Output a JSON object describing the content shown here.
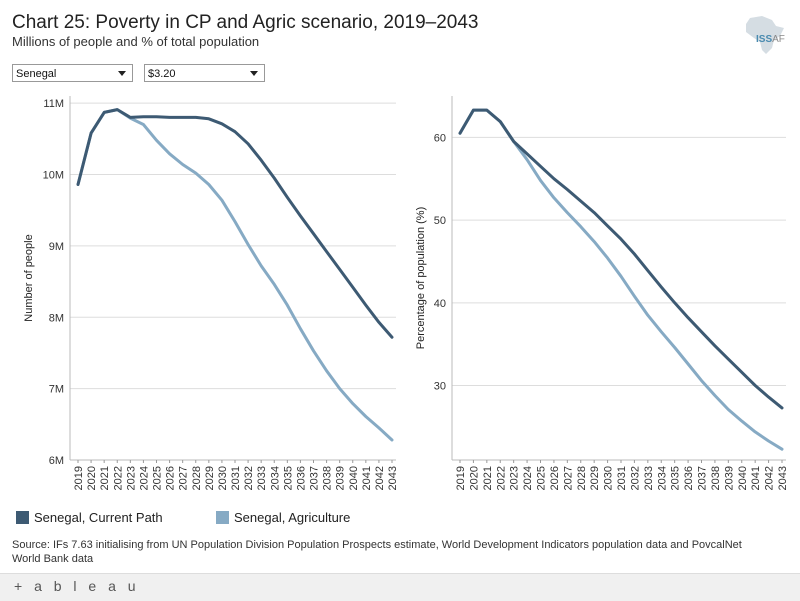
{
  "header": {
    "title": "Chart 25: Poverty in CP and Agric scenario, 2019–2043",
    "subtitle": "Millions of people and % of total population"
  },
  "logo": {
    "text_main": "ISS",
    "text_sub": "AF"
  },
  "filters": {
    "country": "Senegal",
    "threshold": "$3.20"
  },
  "colors": {
    "current_path": "#3d5a73",
    "agriculture": "#86aac4",
    "grid": "#dddddd",
    "axis": "#555555"
  },
  "chart_data": [
    {
      "type": "line",
      "title": "",
      "xlabel": "",
      "ylabel": "Number of people",
      "ylim": [
        6,
        11.1
      ],
      "yticks": [
        6,
        7,
        8,
        9,
        10,
        11
      ],
      "ytick_labels": [
        "6M",
        "7M",
        "8M",
        "9M",
        "10M",
        "11M"
      ],
      "x": [
        "2019",
        "2020",
        "2021",
        "2022",
        "2023",
        "2024",
        "2025",
        "2026",
        "2027",
        "2028",
        "2029",
        "2030",
        "2031",
        "2032",
        "2033",
        "2034",
        "2035",
        "2036",
        "2037",
        "2038",
        "2039",
        "2040",
        "2041",
        "2042",
        "2043"
      ],
      "series": [
        {
          "name": "Senegal, Current Path",
          "values": [
            9.86,
            10.58,
            10.87,
            10.91,
            10.8,
            10.81,
            10.81,
            10.8,
            10.8,
            10.8,
            10.78,
            10.71,
            10.6,
            10.43,
            10.2,
            9.95,
            9.68,
            9.42,
            9.17,
            8.92,
            8.67,
            8.42,
            8.17,
            7.93,
            7.72
          ]
        },
        {
          "name": "Senegal, Agriculture",
          "values": [
            9.86,
            10.58,
            10.87,
            10.91,
            10.79,
            10.7,
            10.48,
            10.29,
            10.14,
            10.02,
            9.86,
            9.64,
            9.34,
            9.02,
            8.72,
            8.46,
            8.17,
            7.84,
            7.53,
            7.25,
            7.0,
            6.79,
            6.61,
            6.45,
            6.28
          ]
        }
      ]
    },
    {
      "type": "line",
      "title": "",
      "xlabel": "",
      "ylabel": "Percentage of population (%)",
      "ylim": [
        21,
        65
      ],
      "yticks": [
        30,
        40,
        50,
        60
      ],
      "ytick_labels": [
        "30",
        "40",
        "50",
        "60"
      ],
      "x": [
        "2019",
        "2020",
        "2021",
        "2022",
        "2023",
        "2024",
        "2025",
        "2026",
        "2027",
        "2028",
        "2029",
        "2030",
        "2031",
        "2032",
        "2033",
        "2034",
        "2035",
        "2036",
        "2037",
        "2038",
        "2039",
        "2040",
        "2041",
        "2042",
        "2043"
      ],
      "series": [
        {
          "name": "Senegal, Current Path",
          "values": [
            60.5,
            63.3,
            63.3,
            61.9,
            59.5,
            58.0,
            56.5,
            55.0,
            53.7,
            52.3,
            50.9,
            49.3,
            47.7,
            45.9,
            43.9,
            41.9,
            40.0,
            38.2,
            36.5,
            34.8,
            33.2,
            31.6,
            30.0,
            28.6,
            27.3
          ]
        },
        {
          "name": "Senegal, Agriculture",
          "values": [
            60.5,
            63.3,
            63.3,
            61.9,
            59.5,
            57.3,
            54.8,
            52.7,
            50.9,
            49.2,
            47.4,
            45.4,
            43.2,
            40.8,
            38.5,
            36.5,
            34.6,
            32.6,
            30.6,
            28.8,
            27.1,
            25.7,
            24.4,
            23.3,
            22.3
          ]
        }
      ]
    }
  ],
  "legend": [
    {
      "label": "Senegal, Current Path"
    },
    {
      "label": "Senegal, Agriculture"
    }
  ],
  "source": "Source: IFs 7.63 initialising from UN Population Division Population Prospects estimate, World Development Indicators population data and PovcalNet World Bank data",
  "footer": {
    "brand": "+ a b l e a u"
  }
}
